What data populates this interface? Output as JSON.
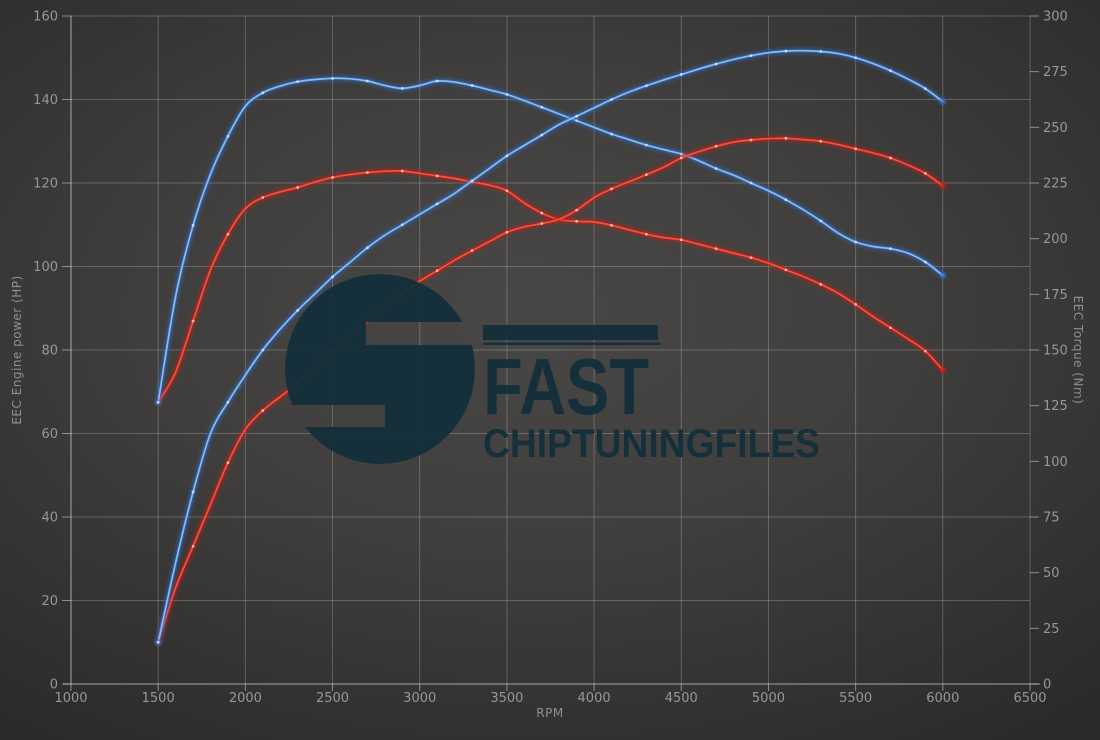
{
  "chart_data": {
    "type": "line",
    "xlabel": "RPM",
    "ylabel_left": "EEC Engine power (HP)",
    "ylabel_right": "EEC Torque (Nm)",
    "x_range": [
      1000,
      6500
    ],
    "x_ticks": [
      1000,
      1500,
      2000,
      2500,
      3000,
      3500,
      4000,
      4500,
      5000,
      5500,
      6000,
      6500
    ],
    "y_left_range": [
      0,
      160
    ],
    "y_left_ticks": [
      0,
      20,
      40,
      60,
      80,
      100,
      120,
      140,
      160
    ],
    "y_right_range": [
      0,
      300
    ],
    "y_right_ticks": [
      0,
      25,
      50,
      75,
      100,
      125,
      150,
      175,
      200,
      225,
      250,
      275,
      300
    ],
    "grid": true,
    "legend": "none",
    "series": [
      {
        "name": "red-torque",
        "axis": "right",
        "color_key": "red",
        "unit": "Nm",
        "points": [
          [
            1500,
            126.5
          ],
          [
            1600,
            140
          ],
          [
            1700,
            163
          ],
          [
            1800,
            186
          ],
          [
            1900,
            202
          ],
          [
            2000,
            213.5
          ],
          [
            2100,
            218.5
          ],
          [
            2200,
            221
          ],
          [
            2300,
            223
          ],
          [
            2400,
            225.5
          ],
          [
            2500,
            227.5
          ],
          [
            2600,
            228.8
          ],
          [
            2700,
            229.7
          ],
          [
            2800,
            230.3
          ],
          [
            2900,
            230.4
          ],
          [
            3000,
            229.3
          ],
          [
            3100,
            228.2
          ],
          [
            3200,
            227
          ],
          [
            3300,
            225.5
          ],
          [
            3400,
            224
          ],
          [
            3500,
            221.5
          ],
          [
            3600,
            216
          ],
          [
            3700,
            211.5
          ],
          [
            3800,
            208.5
          ],
          [
            3900,
            207.8
          ],
          [
            4000,
            207.5
          ],
          [
            4100,
            206
          ],
          [
            4200,
            204
          ],
          [
            4300,
            202
          ],
          [
            4400,
            200.5
          ],
          [
            4500,
            199.5
          ],
          [
            4600,
            197.5
          ],
          [
            4700,
            195.5
          ],
          [
            4800,
            193.5
          ],
          [
            4900,
            191.5
          ],
          [
            5000,
            189
          ],
          [
            5100,
            186
          ],
          [
            5200,
            183
          ],
          [
            5300,
            179.5
          ],
          [
            5400,
            175.5
          ],
          [
            5500,
            170.5
          ],
          [
            5600,
            165
          ],
          [
            5700,
            160
          ],
          [
            5800,
            155
          ],
          [
            5900,
            149.5
          ],
          [
            6000,
            141
          ]
        ]
      },
      {
        "name": "blue-torque",
        "axis": "right",
        "color_key": "blue",
        "unit": "Nm",
        "points": [
          [
            1500,
            126.5
          ],
          [
            1600,
            174
          ],
          [
            1700,
            206
          ],
          [
            1800,
            229
          ],
          [
            1900,
            246
          ],
          [
            2000,
            259.5
          ],
          [
            2100,
            265.5
          ],
          [
            2200,
            268.5
          ],
          [
            2300,
            270.5
          ],
          [
            2400,
            271.5
          ],
          [
            2500,
            272
          ],
          [
            2600,
            271.8
          ],
          [
            2700,
            270.8
          ],
          [
            2800,
            268.8
          ],
          [
            2900,
            267.5
          ],
          [
            3000,
            268.8
          ],
          [
            3100,
            270.8
          ],
          [
            3200,
            270.3
          ],
          [
            3300,
            268.8
          ],
          [
            3400,
            266.8
          ],
          [
            3500,
            264.8
          ],
          [
            3600,
            262
          ],
          [
            3700,
            259
          ],
          [
            3800,
            256
          ],
          [
            3900,
            253
          ],
          [
            4000,
            250
          ],
          [
            4100,
            247
          ],
          [
            4200,
            244.5
          ],
          [
            4300,
            242
          ],
          [
            4400,
            240
          ],
          [
            4500,
            238
          ],
          [
            4600,
            235
          ],
          [
            4700,
            231.5
          ],
          [
            4800,
            228.5
          ],
          [
            4900,
            225
          ],
          [
            5000,
            221.5
          ],
          [
            5100,
            217.5
          ],
          [
            5200,
            213
          ],
          [
            5300,
            208
          ],
          [
            5400,
            202.5
          ],
          [
            5500,
            198.5
          ],
          [
            5600,
            196.5
          ],
          [
            5700,
            195.5
          ],
          [
            5800,
            193.5
          ],
          [
            5900,
            189.5
          ],
          [
            6000,
            183.5
          ]
        ]
      },
      {
        "name": "red-power",
        "axis": "left",
        "color_key": "red",
        "unit": "HP",
        "points": [
          [
            1500,
            10
          ],
          [
            1600,
            23
          ],
          [
            1700,
            33
          ],
          [
            1800,
            43
          ],
          [
            1900,
            53
          ],
          [
            2000,
            61
          ],
          [
            2100,
            65.5
          ],
          [
            2200,
            68.8
          ],
          [
            2300,
            72
          ],
          [
            2400,
            76
          ],
          [
            2500,
            79.8
          ],
          [
            2600,
            83.5
          ],
          [
            2700,
            87
          ],
          [
            2800,
            90.4
          ],
          [
            2900,
            93.6
          ],
          [
            3000,
            96.5
          ],
          [
            3100,
            99
          ],
          [
            3200,
            101.5
          ],
          [
            3300,
            103.8
          ],
          [
            3400,
            106
          ],
          [
            3500,
            108.2
          ],
          [
            3600,
            109.5
          ],
          [
            3700,
            110.3
          ],
          [
            3800,
            111.3
          ],
          [
            3900,
            113.5
          ],
          [
            4000,
            116.5
          ],
          [
            4100,
            118.6
          ],
          [
            4200,
            120.3
          ],
          [
            4300,
            122
          ],
          [
            4400,
            123.8
          ],
          [
            4500,
            126
          ],
          [
            4600,
            127.5
          ],
          [
            4700,
            128.8
          ],
          [
            4800,
            129.8
          ],
          [
            4900,
            130.3
          ],
          [
            5000,
            130.6
          ],
          [
            5100,
            130.7
          ],
          [
            5200,
            130.4
          ],
          [
            5300,
            130
          ],
          [
            5400,
            129.2
          ],
          [
            5500,
            128.2
          ],
          [
            5600,
            127.2
          ],
          [
            5700,
            126
          ],
          [
            5800,
            124.3
          ],
          [
            5900,
            122.3
          ],
          [
            6000,
            119.3
          ]
        ]
      },
      {
        "name": "blue-power",
        "axis": "left",
        "color_key": "blue",
        "unit": "HP",
        "points": [
          [
            1500,
            10
          ],
          [
            1600,
            29
          ],
          [
            1700,
            46
          ],
          [
            1800,
            60
          ],
          [
            1900,
            67.5
          ],
          [
            2000,
            74
          ],
          [
            2100,
            80
          ],
          [
            2200,
            85
          ],
          [
            2300,
            89.5
          ],
          [
            2400,
            93.5
          ],
          [
            2500,
            97.5
          ],
          [
            2600,
            101
          ],
          [
            2700,
            104.5
          ],
          [
            2800,
            107.5
          ],
          [
            2900,
            110
          ],
          [
            3000,
            112.5
          ],
          [
            3100,
            115
          ],
          [
            3200,
            117.5
          ],
          [
            3300,
            120.5
          ],
          [
            3400,
            123.5
          ],
          [
            3500,
            126.5
          ],
          [
            3600,
            129
          ],
          [
            3700,
            131.5
          ],
          [
            3800,
            134
          ],
          [
            3900,
            136
          ],
          [
            4000,
            138
          ],
          [
            4100,
            140
          ],
          [
            4200,
            141.8
          ],
          [
            4300,
            143.3
          ],
          [
            4400,
            144.7
          ],
          [
            4500,
            146
          ],
          [
            4600,
            147.3
          ],
          [
            4700,
            148.5
          ],
          [
            4800,
            149.6
          ],
          [
            4900,
            150.5
          ],
          [
            5000,
            151.2
          ],
          [
            5100,
            151.6
          ],
          [
            5200,
            151.7
          ],
          [
            5300,
            151.5
          ],
          [
            5400,
            151
          ],
          [
            5500,
            150
          ],
          [
            5600,
            148.6
          ],
          [
            5700,
            146.9
          ],
          [
            5800,
            144.9
          ],
          [
            5900,
            142.6
          ],
          [
            6000,
            139.5
          ]
        ]
      }
    ]
  },
  "watermark": {
    "line1": "FAST",
    "line2": "CHIPTUNINGFILES",
    "color": "#14303a"
  },
  "colors": {
    "background": "#3e3d3c",
    "grid": "rgba(255,255,255,0.22)",
    "axis": "rgba(255,255,255,0.45)",
    "tick_text": "#979797",
    "axis_title_text": "#8f8f8f",
    "blue_core": "#8abcf0",
    "blue_glow": "#2e6fca",
    "blue_dot": "#d2e6fa",
    "red_core": "#f4513f",
    "red_glow": "#c61e14",
    "red_dot": "#ffc9c0"
  },
  "labels": {
    "xlabel": "RPM",
    "ylabel_left": "EEC Engine power (HP)",
    "ylabel_right": "EEC Torque (Nm)"
  }
}
